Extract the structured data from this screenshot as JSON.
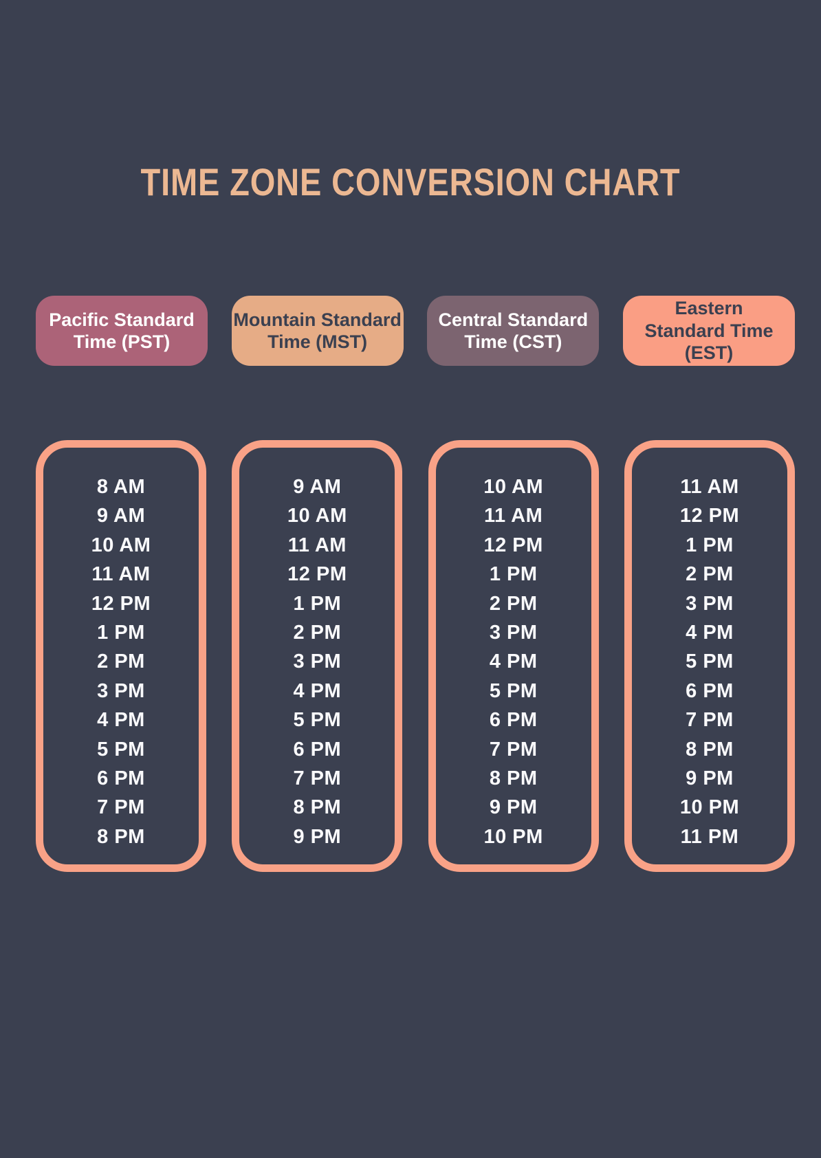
{
  "title": "TIME ZONE CONVERSION CHART",
  "colors": {
    "background": "#3b4050",
    "title_text": "#ecb892",
    "box_border": "#f9a287",
    "time_text": "#fafafc"
  },
  "columns": [
    {
      "id": "pst",
      "header": "Pacific Standard\nTime (PST)",
      "header_full": "Pacific Standard Time (PST)",
      "pill_bg": "#ac6378",
      "pill_text": "#ffffff",
      "times": [
        "8 AM",
        "9 AM",
        "10 AM",
        "11 AM",
        "12 PM",
        "1 PM",
        "2 PM",
        "3 PM",
        "4 PM",
        "5 PM",
        "6 PM",
        "7 PM",
        "8 PM"
      ]
    },
    {
      "id": "mst",
      "header": "Mountain Standard\nTime (MST)",
      "header_full": "Mountain Standard Time (MST)",
      "pill_bg": "#e6ac86",
      "pill_text": "#3b4050",
      "times": [
        "9 AM",
        "10 AM",
        "11 AM",
        "12 PM",
        "1 PM",
        "2 PM",
        "3 PM",
        "4 PM",
        "5 PM",
        "6 PM",
        "7 PM",
        "8 PM",
        "9 PM"
      ]
    },
    {
      "id": "cst",
      "header": "Central Standard\nTime (CST)",
      "header_full": "Central Standard Time (CST)",
      "pill_bg": "#7c6470",
      "pill_text": "#ffffff",
      "times": [
        "10 AM",
        "11 AM",
        "12 PM",
        "1 PM",
        "2 PM",
        "3 PM",
        "4 PM",
        "5 PM",
        "6 PM",
        "7 PM",
        "8 PM",
        "9 PM",
        "10 PM"
      ]
    },
    {
      "id": "est",
      "header": "Eastern\nStandard Time\n(EST)",
      "header_full": "Eastern Standard Time (EST)",
      "pill_bg": "#fa9e84",
      "pill_text": "#3b4050",
      "times": [
        "11 AM",
        "12 PM",
        "1 PM",
        "2 PM",
        "3 PM",
        "4 PM",
        "5 PM",
        "6 PM",
        "7 PM",
        "8 PM",
        "9 PM",
        "10 PM",
        "11 PM"
      ]
    }
  ],
  "chart_data": {
    "type": "table",
    "title": "TIME ZONE CONVERSION CHART",
    "columns": [
      "Pacific Standard Time (PST)",
      "Mountain Standard Time (MST)",
      "Central Standard Time (CST)",
      "Eastern Standard Time (EST)"
    ],
    "rows": [
      [
        "8 AM",
        "9 AM",
        "10 AM",
        "11 AM"
      ],
      [
        "9 AM",
        "10 AM",
        "11 AM",
        "12 PM"
      ],
      [
        "10 AM",
        "11 AM",
        "12 PM",
        "1 PM"
      ],
      [
        "11 AM",
        "12 PM",
        "1 PM",
        "2 PM"
      ],
      [
        "12 PM",
        "1 PM",
        "2 PM",
        "3 PM"
      ],
      [
        "1 PM",
        "2 PM",
        "3 PM",
        "4 PM"
      ],
      [
        "2 PM",
        "3 PM",
        "4 PM",
        "5 PM"
      ],
      [
        "3 PM",
        "4 PM",
        "5 PM",
        "6 PM"
      ],
      [
        "4 PM",
        "5 PM",
        "6 PM",
        "7 PM"
      ],
      [
        "5 PM",
        "6 PM",
        "7 PM",
        "8 PM"
      ],
      [
        "6 PM",
        "7 PM",
        "8 PM",
        "9 PM"
      ],
      [
        "7 PM",
        "8 PM",
        "9 PM",
        "10 PM"
      ],
      [
        "8 PM",
        "9 PM",
        "10 PM",
        "11 PM"
      ]
    ]
  }
}
